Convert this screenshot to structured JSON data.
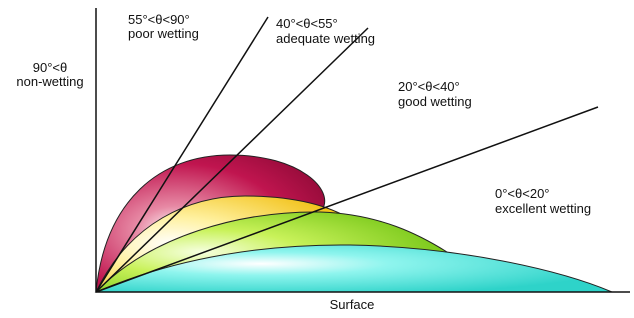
{
  "labels": {
    "non_wetting": {
      "angle": "90°<θ",
      "name": "non-wetting"
    },
    "poor": {
      "angle": "55°<θ<90°",
      "name": "poor wetting"
    },
    "adequate": {
      "angle": "40°<θ<55°",
      "name": "adequate wetting"
    },
    "good": {
      "angle": "20°<θ<40°",
      "name": "good wetting"
    },
    "excellent": {
      "angle": "0°<θ<20°",
      "name": "excellent wetting"
    },
    "axis": "Surface"
  }
}
